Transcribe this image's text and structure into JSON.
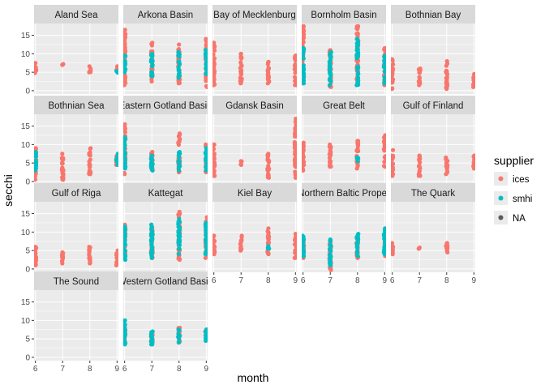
{
  "chart_data": {
    "type": "scatter",
    "facet_by": "basin",
    "xlabel": "month",
    "ylabel": "secchi",
    "x_ticks": [
      6,
      7,
      8,
      9
    ],
    "y_ticks": [
      0,
      5,
      10,
      15
    ],
    "xlim": [
      5.95,
      9.05
    ],
    "ylim": [
      -0.9,
      18.2
    ],
    "grid": true,
    "legend": {
      "title": "supplier",
      "position": "right",
      "entries": [
        {
          "label": "ices",
          "color": "#F8766D"
        },
        {
          "label": "smhi",
          "color": "#00BFC4"
        },
        {
          "label": "NA",
          "color": "#595959"
        }
      ]
    },
    "panels": [
      {
        "title": "Aland Sea",
        "series": {
          "ices": [
            {
              "month": 6,
              "range": [
                4.8,
                7.5
              ]
            },
            {
              "month": 7,
              "range": [
                7.0,
                7.2
              ]
            },
            {
              "month": 8,
              "range": [
                5.0,
                6.6
              ]
            },
            {
              "month": 9,
              "range": [
                5.6,
                6.6
              ]
            }
          ],
          "smhi": [
            {
              "month": 9,
              "range": [
                4.9,
                5.3
              ]
            }
          ]
        }
      },
      {
        "title": "Arkona Basin",
        "series": {
          "ices": [
            {
              "month": 6,
              "range": [
                1.5,
                16.5
              ]
            },
            {
              "month": 7,
              "range": [
                2.5,
                13.0
              ]
            },
            {
              "month": 8,
              "range": [
                2.0,
                12.5
              ]
            },
            {
              "month": 9,
              "range": [
                1.0,
                14.0
              ]
            }
          ],
          "smhi": [
            {
              "month": 6,
              "range": [
                5.0,
                9.5
              ]
            },
            {
              "month": 7,
              "range": [
                4.0,
                10.0
              ]
            },
            {
              "month": 8,
              "range": [
                3.5,
                10.5
              ]
            },
            {
              "month": 9,
              "range": [
                4.5,
                11.0
              ]
            }
          ]
        }
      },
      {
        "title": "Bay of Mecklenburg",
        "series": {
          "ices": [
            {
              "month": 6,
              "range": [
                1.5,
                13.0
              ]
            },
            {
              "month": 7,
              "range": [
                2.0,
                10.0
              ]
            },
            {
              "month": 8,
              "range": [
                2.0,
                7.8
              ]
            },
            {
              "month": 9,
              "range": [
                1.5,
                9.5
              ]
            }
          ]
        }
      },
      {
        "title": "Bornholm Basin",
        "series": {
          "ices": [
            {
              "month": 6,
              "range": [
                2.0,
                17.5
              ]
            },
            {
              "month": 7,
              "range": [
                1.0,
                11.0
              ]
            },
            {
              "month": 8,
              "range": [
                2.0,
                17.5
              ]
            },
            {
              "month": 9,
              "range": [
                1.5,
                11.5
              ]
            }
          ],
          "smhi": [
            {
              "month": 6,
              "range": [
                2.0,
                11.5
              ]
            },
            {
              "month": 7,
              "range": [
                1.5,
                10.5
              ]
            },
            {
              "month": 8,
              "range": [
                1.5,
                14.0
              ]
            },
            {
              "month": 9,
              "range": [
                2.0,
                9.5
              ]
            }
          ]
        }
      },
      {
        "title": "Bothnian Bay",
        "series": {
          "ices": [
            {
              "month": 6,
              "range": [
                0.5,
                8.5
              ]
            },
            {
              "month": 7,
              "range": [
                1.5,
                6.0
              ]
            },
            {
              "month": 8,
              "range": [
                0.5,
                8.0
              ]
            },
            {
              "month": 9,
              "range": [
                1.0,
                4.5
              ]
            }
          ]
        }
      },
      {
        "title": "Bothnian Sea",
        "series": {
          "ices": [
            {
              "month": 6,
              "range": [
                0.5,
                9.0
              ]
            },
            {
              "month": 7,
              "range": [
                0.5,
                7.5
              ]
            },
            {
              "month": 8,
              "range": [
                2.0,
                9.0
              ]
            },
            {
              "month": 9,
              "range": [
                4.5,
                7.0
              ]
            }
          ],
          "smhi": [
            {
              "month": 6,
              "range": [
                3.0,
                8.0
              ]
            },
            {
              "month": 9,
              "range": [
                4.5,
                7.5
              ]
            }
          ]
        }
      },
      {
        "title": "Eastern Gotland Basin",
        "series": {
          "ices": [
            {
              "month": 6,
              "range": [
                2.0,
                15.5
              ]
            },
            {
              "month": 7,
              "range": [
                3.0,
                8.0
              ]
            },
            {
              "month": 8,
              "range": [
                2.5,
                13.0
              ]
            },
            {
              "month": 9,
              "range": [
                2.5,
                10.0
              ]
            }
          ],
          "smhi": [
            {
              "month": 6,
              "range": [
                3.5,
                12.0
              ]
            },
            {
              "month": 7,
              "range": [
                3.0,
                7.0
              ]
            },
            {
              "month": 8,
              "range": [
                3.0,
                8.0
              ]
            },
            {
              "month": 9,
              "range": [
                3.0,
                9.0
              ]
            }
          ]
        }
      },
      {
        "title": "Gdansk Basin",
        "series": {
          "ices": [
            {
              "month": 6,
              "range": [
                1.5,
                10.0
              ]
            },
            {
              "month": 7,
              "range": [
                4.5,
                5.5
              ]
            },
            {
              "month": 8,
              "range": [
                1.0,
                7.5
              ]
            },
            {
              "month": 9,
              "range": [
                1.0,
                17.0
              ]
            }
          ]
        }
      },
      {
        "title": "Great Belt",
        "series": {
          "ices": [
            {
              "month": 6,
              "range": [
                3.0,
                10.5
              ]
            },
            {
              "month": 7,
              "range": [
                4.0,
                10.0
              ]
            },
            {
              "month": 8,
              "range": [
                3.5,
                11.0
              ]
            },
            {
              "month": 9,
              "range": [
                4.0,
                12.5
              ]
            }
          ],
          "smhi": [
            {
              "month": 8,
              "range": [
                5.5,
                6.5
              ]
            }
          ]
        }
      },
      {
        "title": "Gulf of Finland",
        "series": {
          "ices": [
            {
              "month": 6,
              "range": [
                1.5,
                8.5
              ]
            },
            {
              "month": 7,
              "range": [
                1.5,
                7.0
              ]
            },
            {
              "month": 8,
              "range": [
                2.0,
                6.5
              ]
            },
            {
              "month": 9,
              "range": [
                3.5,
                7.0
              ]
            }
          ]
        }
      },
      {
        "title": "Gulf of Riga",
        "series": {
          "ices": [
            {
              "month": 6,
              "range": [
                1.0,
                6.0
              ]
            },
            {
              "month": 7,
              "range": [
                1.5,
                4.5
              ]
            },
            {
              "month": 8,
              "range": [
                1.5,
                6.0
              ]
            },
            {
              "month": 9,
              "range": [
                1.0,
                5.0
              ]
            }
          ]
        }
      },
      {
        "title": "Kattegat",
        "series": {
          "ices": [
            {
              "month": 6,
              "range": [
                3.0,
                12.0
              ]
            },
            {
              "month": 7,
              "range": [
                3.0,
                12.0
              ]
            },
            {
              "month": 8,
              "range": [
                2.5,
                15.5
              ]
            },
            {
              "month": 9,
              "range": [
                3.0,
                14.0
              ]
            }
          ],
          "smhi": [
            {
              "month": 6,
              "range": [
                2.5,
                11.5
              ]
            },
            {
              "month": 7,
              "range": [
                3.0,
                12.0
              ]
            },
            {
              "month": 8,
              "range": [
                4.0,
                13.5
              ]
            },
            {
              "month": 9,
              "range": [
                4.0,
                12.5
              ]
            }
          ]
        }
      },
      {
        "title": "Kiel Bay",
        "series": {
          "ices": [
            {
              "month": 6,
              "range": [
                4.0,
                9.0
              ]
            },
            {
              "month": 7,
              "range": [
                5.0,
                9.0
              ]
            },
            {
              "month": 8,
              "range": [
                4.0,
                11.0
              ]
            },
            {
              "month": 9,
              "range": [
                3.0,
                9.5
              ]
            }
          ],
          "smhi": [
            {
              "month": 8,
              "range": [
                5.5,
                6.2
              ]
            }
          ]
        }
      },
      {
        "title": "Northern Baltic Proper",
        "series": {
          "ices": [
            {
              "month": 6,
              "range": [
                3.0,
                8.5
              ]
            },
            {
              "month": 7,
              "range": [
                -0.3,
                7.5
              ]
            },
            {
              "month": 8,
              "range": [
                3.0,
                8.5
              ]
            },
            {
              "month": 9,
              "range": [
                3.5,
                9.0
              ]
            }
          ],
          "smhi": [
            {
              "month": 6,
              "range": [
                3.5,
                9.0
              ]
            },
            {
              "month": 7,
              "range": [
                1.0,
                8.0
              ]
            },
            {
              "month": 8,
              "range": [
                3.5,
                9.5
              ]
            },
            {
              "month": 9,
              "range": [
                4.0,
                11.0
              ]
            }
          ]
        }
      },
      {
        "title": "The Quark",
        "series": {
          "ices": [
            {
              "month": 6,
              "range": [
                4.0,
                7.0
              ]
            },
            {
              "month": 7,
              "range": [
                5.5,
                5.8
              ]
            },
            {
              "month": 8,
              "range": [
                4.5,
                7.0
              ]
            }
          ]
        }
      },
      {
        "title": "The Sound",
        "series": {}
      },
      {
        "title": "Western Gotland Basin",
        "series": {
          "ices": [
            {
              "month": 6,
              "range": [
                4.0,
                8.0
              ]
            },
            {
              "month": 7,
              "range": [
                4.0,
                6.5
              ]
            },
            {
              "month": 8,
              "range": [
                4.0,
                8.0
              ]
            },
            {
              "month": 9,
              "range": [
                5.0,
                7.5
              ]
            }
          ],
          "smhi": [
            {
              "month": 6,
              "range": [
                3.5,
                10.0
              ]
            },
            {
              "month": 7,
              "range": [
                3.5,
                7.0
              ]
            },
            {
              "month": 8,
              "range": [
                4.0,
                7.5
              ]
            },
            {
              "month": 9,
              "range": [
                4.5,
                7.5
              ]
            }
          ]
        }
      }
    ]
  }
}
